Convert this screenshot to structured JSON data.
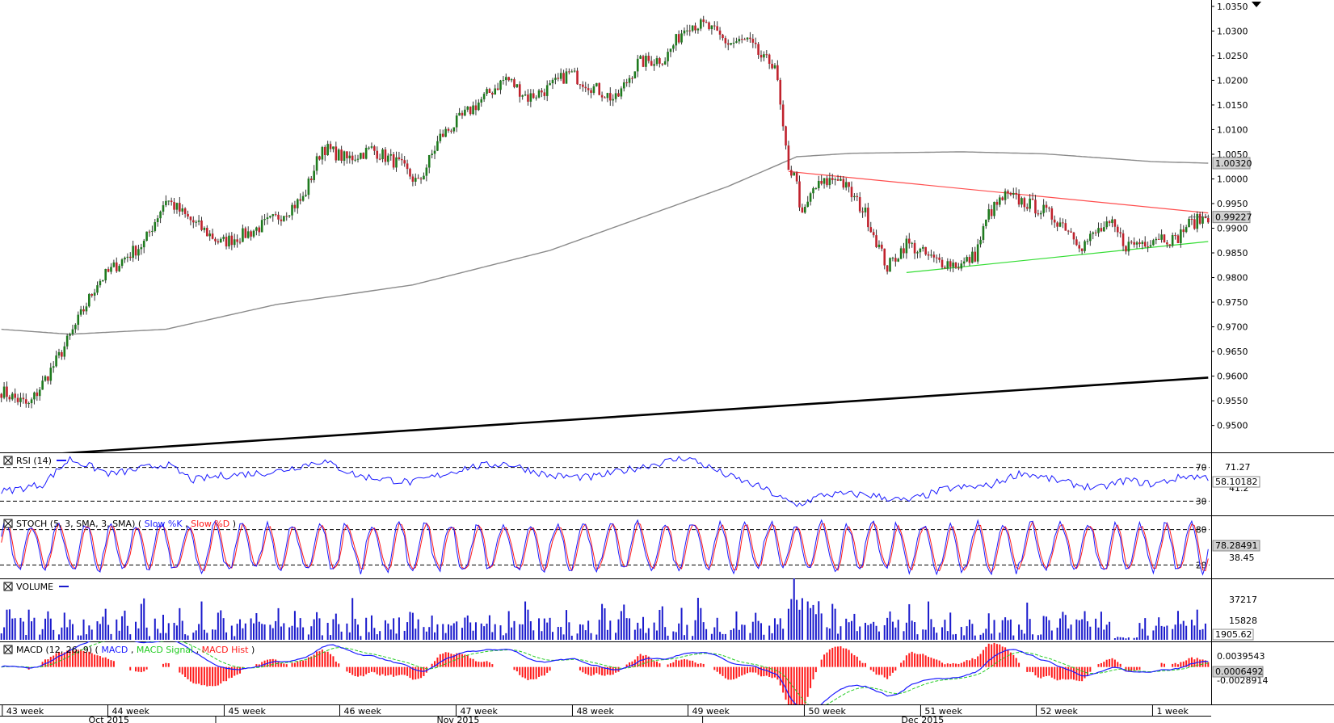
{
  "colors": {
    "up": "#1e7a1e",
    "down": "#c0222d",
    "ma": "#8a8a8a",
    "trend": "#000000",
    "resistance": "#ff4d4d",
    "support": "#33dd33",
    "rsi": "#1a1aff",
    "stoch_k": "#1a1aff",
    "stoch_d": "#ff1a1a",
    "volume": "#1a1acc",
    "macd": "#1a1aff",
    "macd_signal": "#22cc22",
    "macd_hist": "#ff1a1a"
  },
  "chart_data": {
    "type": "line",
    "price_panel": {
      "type": "candlestick",
      "y_ticks": [
        "1.0350",
        "1.0300",
        "1.0250",
        "1.0200",
        "1.0150",
        "1.0100",
        "1.0050",
        "1.0000",
        "0.9950",
        "0.9900",
        "0.9850",
        "0.9800",
        "0.9750",
        "0.9700",
        "0.9650",
        "0.9600",
        "0.9550",
        "0.9500"
      ],
      "ylim": [
        0.9465,
        1.0358
      ],
      "labels": {
        "ma_value": "1.00320",
        "last_price": "0.99227"
      },
      "close_anchors": [
        [
          0,
          0.957
        ],
        [
          10,
          0.954
        ],
        [
          20,
          0.963
        ],
        [
          25,
          0.968
        ],
        [
          35,
          0.979
        ],
        [
          45,
          0.984
        ],
        [
          52,
          0.987
        ],
        [
          60,
          0.996
        ],
        [
          68,
          0.992
        ],
        [
          80,
          0.987
        ],
        [
          90,
          0.989
        ],
        [
          100,
          0.992
        ],
        [
          110,
          0.996
        ],
        [
          117,
          1.0065
        ],
        [
          126,
          1.004
        ],
        [
          135,
          1.006
        ],
        [
          145,
          1.003
        ],
        [
          152,
          0.999
        ],
        [
          160,
          1.0085
        ],
        [
          168,
          1.0125
        ],
        [
          176,
          1.0165
        ],
        [
          184,
          1.0205
        ],
        [
          192,
          1.0165
        ],
        [
          200,
          1.0185
        ],
        [
          207,
          1.0215
        ],
        [
          216,
          1.0185
        ],
        [
          224,
          1.016
        ],
        [
          232,
          1.0235
        ],
        [
          242,
          1.0245
        ],
        [
          250,
          1.0315
        ],
        [
          257,
          1.031
        ],
        [
          265,
          1.0275
        ],
        [
          272,
          1.028
        ],
        [
          278,
          1.024
        ],
        [
          282,
          1.0235
        ],
        [
          287,
          1.001
        ],
        [
          289,
          1.002
        ],
        [
          292,
          0.992
        ],
        [
          296,
          0.998
        ],
        [
          305,
          1.0005
        ],
        [
          315,
          0.993
        ],
        [
          323,
          0.982
        ],
        [
          330,
          0.987
        ],
        [
          340,
          0.9835
        ],
        [
          350,
          0.9825
        ],
        [
          355,
          0.9845
        ],
        [
          360,
          0.993
        ],
        [
          366,
          0.9965
        ],
        [
          372,
          0.9955
        ],
        [
          380,
          0.9935
        ],
        [
          388,
          0.9905
        ],
        [
          394,
          0.9865
        ],
        [
          400,
          0.9895
        ],
        [
          405,
          0.9905
        ],
        [
          410,
          0.9865
        ],
        [
          418,
          0.9875
        ],
        [
          422,
          0.9885
        ],
        [
          428,
          0.9875
        ],
        [
          432,
          0.9905
        ],
        [
          436,
          0.9915
        ],
        [
          440,
          0.9925
        ]
      ],
      "ma_200": [
        [
          0,
          0.9695
        ],
        [
          25,
          0.9685
        ],
        [
          60,
          0.9695
        ],
        [
          100,
          0.9745
        ],
        [
          150,
          0.9785
        ],
        [
          200,
          0.9855
        ],
        [
          240,
          0.9935
        ],
        [
          265,
          0.9985
        ],
        [
          290,
          1.0045
        ],
        [
          310,
          1.0052
        ],
        [
          350,
          1.0055
        ],
        [
          380,
          1.0051
        ],
        [
          420,
          1.0035
        ],
        [
          440,
          1.0032
        ]
      ],
      "long_trendline": [
        [
          0,
          0.9435
        ],
        [
          440,
          0.9597
        ]
      ],
      "resistance_line": [
        [
          287,
          1.0015
        ],
        [
          440,
          0.9931
        ]
      ],
      "support_line": [
        [
          330,
          0.981
        ],
        [
          440,
          0.9873
        ]
      ]
    },
    "x_axis": {
      "week_labels": [
        "43 week",
        "44 week",
        "45 week",
        "46 week",
        "47 week",
        "48 week",
        "49 week",
        "50 week",
        "51 week",
        "52 week",
        "1 week"
      ],
      "month_labels": [
        "Oct 2015",
        "Nov 2015",
        "Dec 2015"
      ]
    },
    "rsi": {
      "label": "RSI (14)",
      "levels": [
        70,
        30
      ],
      "level_labels": [
        "70",
        "30"
      ],
      "axis_labels": [
        "71.27",
        "41.2"
      ],
      "last_value": "58.10182",
      "ylim": [
        15,
        85
      ],
      "anchors": [
        [
          0,
          41
        ],
        [
          15,
          50
        ],
        [
          25,
          80
        ],
        [
          40,
          62
        ],
        [
          60,
          74
        ],
        [
          70,
          55
        ],
        [
          80,
          60
        ],
        [
          100,
          65
        ],
        [
          117,
          78
        ],
        [
          130,
          60
        ],
        [
          150,
          52
        ],
        [
          170,
          70
        ],
        [
          184,
          75
        ],
        [
          200,
          60
        ],
        [
          215,
          58
        ],
        [
          232,
          70
        ],
        [
          250,
          82
        ],
        [
          265,
          60
        ],
        [
          278,
          45
        ],
        [
          285,
          32
        ],
        [
          290,
          25
        ],
        [
          300,
          38
        ],
        [
          315,
          38
        ],
        [
          330,
          30
        ],
        [
          345,
          45
        ],
        [
          360,
          48
        ],
        [
          372,
          64
        ],
        [
          388,
          52
        ],
        [
          400,
          45
        ],
        [
          410,
          55
        ],
        [
          420,
          50
        ],
        [
          432,
          60
        ],
        [
          440,
          58
        ]
      ]
    },
    "stochastic": {
      "label": "STOCH (5, 3, SMA, 3, SMA)",
      "k_label": "Slow %K",
      "d_label": "Slow %D",
      "levels": [
        80,
        20
      ],
      "level_labels": [
        "80",
        "20"
      ],
      "axis_labels": [
        "38.45"
      ],
      "last_value": "78.28491",
      "ylim": [
        0,
        100
      ]
    },
    "volume": {
      "label": "VOLUME",
      "axis_labels": [
        "37217",
        "15828"
      ],
      "last_value": "1905.62",
      "ylim": [
        0,
        50000
      ]
    },
    "macd": {
      "label": "MACD (12, 26, 9)",
      "macd_label": "MACD",
      "signal_label": "MACD Signal",
      "hist_label": "MACD Hist",
      "axis_labels": [
        "0.0039543",
        "-0.0028914"
      ],
      "last_value": "0.0006492",
      "ylim": [
        -0.0065,
        0.0042
      ]
    }
  }
}
